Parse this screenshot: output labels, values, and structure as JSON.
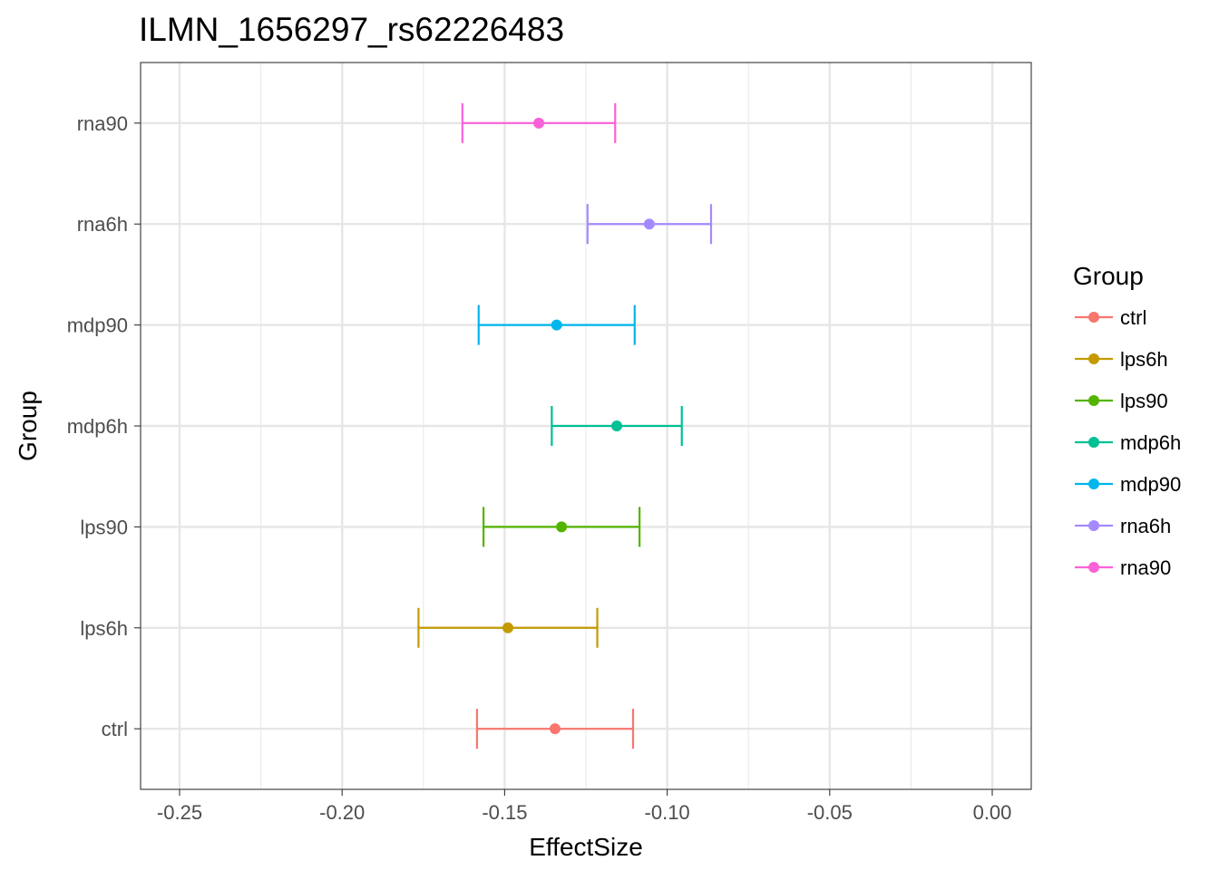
{
  "chart_data": {
    "type": "errorbar",
    "title": "ILMN_1656297_rs62226483",
    "xlabel": "EffectSize",
    "ylabel": "Group",
    "xlim": [
      -0.262,
      0.012
    ],
    "x_ticks": [
      -0.25,
      -0.2,
      -0.15,
      -0.1,
      -0.05,
      0.0
    ],
    "x_tick_labels": [
      "-0.25",
      "-0.20",
      "-0.15",
      "-0.10",
      "-0.05",
      "0.00"
    ],
    "grid": true,
    "legend_title": "Group",
    "legend_position": "right",
    "categories": [
      "ctrl",
      "lps6h",
      "lps90",
      "mdp6h",
      "mdp90",
      "rna6h",
      "rna90"
    ],
    "series": [
      {
        "name": "ctrl",
        "color": "#F8766D",
        "estimate": -0.1345,
        "lower": -0.1585,
        "upper": -0.1105
      },
      {
        "name": "lps6h",
        "color": "#C49A00",
        "estimate": -0.149,
        "lower": -0.1765,
        "upper": -0.1215
      },
      {
        "name": "lps90",
        "color": "#53B400",
        "estimate": -0.1325,
        "lower": -0.1565,
        "upper": -0.1085
      },
      {
        "name": "mdp6h",
        "color": "#00C094",
        "estimate": -0.1155,
        "lower": -0.1355,
        "upper": -0.0955
      },
      {
        "name": "mdp90",
        "color": "#00B6EB",
        "estimate": -0.134,
        "lower": -0.158,
        "upper": -0.11
      },
      {
        "name": "rna6h",
        "color": "#A58AFF",
        "estimate": -0.1055,
        "lower": -0.1245,
        "upper": -0.0865
      },
      {
        "name": "rna90",
        "color": "#FB61D7",
        "estimate": -0.1395,
        "lower": -0.163,
        "upper": -0.116
      }
    ]
  }
}
